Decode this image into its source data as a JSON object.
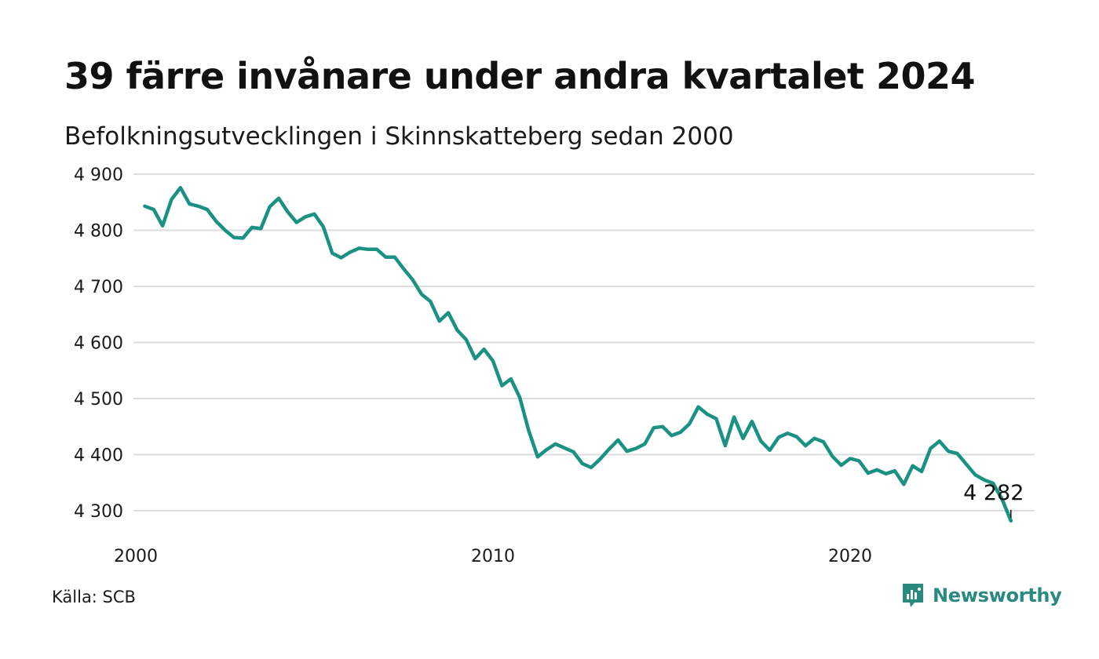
{
  "title": "39 färre invånare under andra kvartalet 2024",
  "subtitle": "Befolkningsutvecklingen i Skinnskatteberg sedan 2000",
  "source": "Källa: SCB",
  "brand": {
    "name": "Newsworthy",
    "icon": "newsworthy-logo-icon"
  },
  "colors": {
    "line": "#1b9183",
    "grid": "#dddddd",
    "brand": "#2a8a80"
  },
  "chart_data": {
    "type": "line",
    "title": "39 färre invånare under andra kvartalet 2024",
    "subtitle": "Befolkningsutvecklingen i Skinnskatteberg sedan 2000",
    "xlabel": "",
    "ylabel": "",
    "ylim": [
      4250,
      4920
    ],
    "xlim": [
      2000,
      2025.3
    ],
    "grid": true,
    "yticks": [
      {
        "value": 4300,
        "label": "4 300"
      },
      {
        "value": 4400,
        "label": "4 400"
      },
      {
        "value": 4500,
        "label": "4 500"
      },
      {
        "value": 4600,
        "label": "4 600"
      },
      {
        "value": 4700,
        "label": "4 700"
      },
      {
        "value": 4800,
        "label": "4 800"
      },
      {
        "value": 4900,
        "label": "4 900"
      }
    ],
    "xticks": [
      {
        "value": 2000,
        "label": "2000"
      },
      {
        "value": 2010,
        "label": "2010"
      },
      {
        "value": 2020,
        "label": "2020"
      }
    ],
    "last_label": "4 282",
    "series": [
      {
        "x": [
          2000.25,
          2000.5,
          2000.75,
          2001.0,
          2001.25,
          2001.5,
          2001.75,
          2002.0,
          2002.25,
          2002.5,
          2002.75,
          2003.0,
          2003.25,
          2003.5,
          2003.75,
          2004.0,
          2004.25,
          2004.5,
          2004.75,
          2005.0,
          2005.25,
          2005.5,
          2005.75,
          2006.0,
          2006.25,
          2006.5,
          2006.75,
          2007.0,
          2007.25,
          2007.5,
          2007.75,
          2008.0,
          2008.25,
          2008.5,
          2008.75,
          2009.0,
          2009.25,
          2009.5,
          2009.75,
          2010.0,
          2010.25,
          2010.5,
          2010.75,
          2011.0,
          2011.25,
          2011.5,
          2011.75,
          2012.0,
          2012.25,
          2012.5,
          2012.75,
          2013.0,
          2013.25,
          2013.5,
          2013.75,
          2014.0,
          2014.25,
          2014.5,
          2014.75,
          2015.0,
          2015.25,
          2015.5,
          2015.75,
          2016.0,
          2016.25,
          2016.5,
          2016.75,
          2017.0,
          2017.25,
          2017.5,
          2017.75,
          2018.0,
          2018.25,
          2018.5,
          2018.75,
          2019.0,
          2019.25,
          2019.5,
          2019.75,
          2020.0,
          2020.25,
          2020.5,
          2020.75,
          2021.0,
          2021.25,
          2021.5,
          2021.75,
          2022.0,
          2022.25,
          2022.5,
          2022.75,
          2023.0,
          2023.25,
          2023.5,
          2023.75,
          2024.0,
          2024.25,
          2024.5
        ],
        "values": [
          4843,
          4837,
          4808,
          4855,
          4876,
          4847,
          4843,
          4837,
          4816,
          4800,
          4787,
          4786,
          4805,
          4803,
          4842,
          4857,
          4833,
          4814,
          4824,
          4829,
          4806,
          4759,
          4751,
          4761,
          4768,
          4766,
          4766,
          4752,
          4752,
          4731,
          4712,
          4686,
          4673,
          4638,
          4653,
          4622,
          4605,
          4571,
          4588,
          4567,
          4523,
          4535,
          4502,
          4443,
          4396,
          4409,
          4419,
          4412,
          4405,
          4384,
          4377,
          4392,
          4410,
          4426,
          4406,
          4411,
          4419,
          4448,
          4450,
          4434,
          4440,
          4455,
          4485,
          4472,
          4464,
          4416,
          4467,
          4429,
          4459,
          4424,
          4408,
          4431,
          4438,
          4432,
          4416,
          4429,
          4423,
          4397,
          4381,
          4393,
          4389,
          4367,
          4373,
          4366,
          4371,
          4347,
          4380,
          4370,
          4411,
          4424,
          4406,
          4402,
          4383,
          4364,
          4355,
          4349,
          4321,
          4282
        ]
      }
    ]
  }
}
